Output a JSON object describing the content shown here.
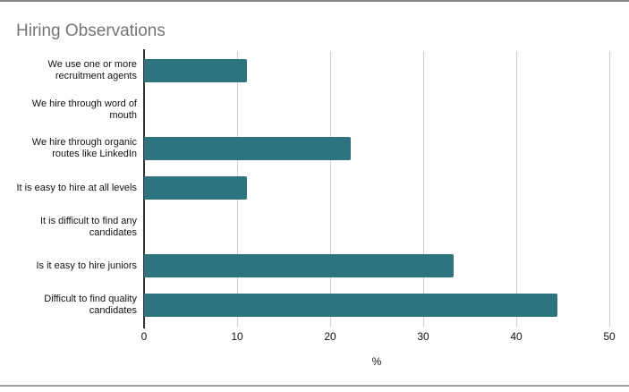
{
  "chart_data": {
    "type": "bar",
    "orientation": "horizontal",
    "title": "Hiring Observations",
    "categories": [
      "We use one or more recruitment agents",
      "We hire through word of mouth",
      "We hire through organic routes like LinkedIn",
      "It is easy to hire at all levels",
      "It is difficult to find any candidates",
      "Is it easy to hire juniors",
      "Difficult to find quality candidates"
    ],
    "values": [
      11.1,
      0,
      22.2,
      11.1,
      0,
      33.3,
      44.4
    ],
    "xlabel": "%",
    "ylabel": "",
    "xlim": [
      0,
      50
    ],
    "x_ticks": [
      0,
      10,
      20,
      30,
      40,
      50
    ],
    "grid": true,
    "legend": "none",
    "colors": {
      "bar": "#2f737e",
      "title": "#757575",
      "axis_line": "#333333",
      "gridline": "#cccccc",
      "tick_text": "#111111"
    }
  },
  "frame": {
    "top_rule_color": "#878787",
    "bottom_rule_color": "#9e9e9e"
  }
}
